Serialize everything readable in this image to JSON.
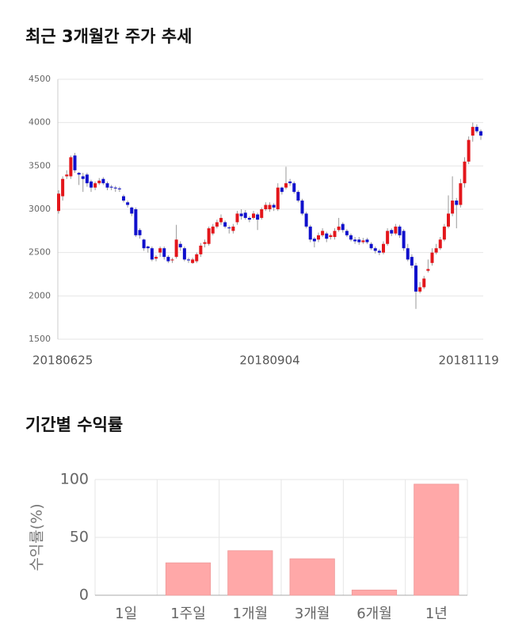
{
  "chart_data": [
    {
      "type": "candlestick",
      "title": "최근 3개월간 주가 추세",
      "categories": [
        null,
        "20180625",
        null,
        null,
        null,
        null,
        null,
        null,
        null,
        null,
        null,
        null,
        null,
        null,
        null,
        null,
        null,
        null,
        null,
        null,
        null,
        null,
        null,
        null,
        null,
        null,
        null,
        null,
        null,
        null,
        null,
        null,
        null,
        null,
        null,
        null,
        null,
        null,
        null,
        null,
        null,
        null,
        null,
        null,
        null,
        null,
        null,
        null,
        null,
        null,
        null,
        null,
        "20180904",
        null,
        null,
        null,
        null,
        null,
        null,
        null,
        null,
        null,
        null,
        null,
        null,
        null,
        null,
        null,
        null,
        null,
        null,
        null,
        null,
        null,
        null,
        null,
        null,
        null,
        null,
        null,
        null,
        null,
        null,
        null,
        null,
        null,
        null,
        null,
        null,
        null,
        null,
        null,
        null,
        null,
        null,
        null,
        null,
        null,
        null,
        null,
        null,
        "20181119",
        null,
        null,
        null
      ],
      "open": [
        2980,
        3150,
        3380,
        3380,
        3620,
        3420,
        3380,
        3400,
        3320,
        3250,
        3300,
        3350,
        3300,
        3260,
        3250,
        3240,
        3150,
        3080,
        3020,
        3000,
        2760,
        2650,
        2570,
        2550,
        2430,
        2500,
        2550,
        2450,
        2410,
        2450,
        2600,
        2550,
        2420,
        2380,
        2400,
        2480,
        2600,
        2600,
        2720,
        2800,
        2850,
        2850,
        2790,
        2750,
        2850,
        2950,
        2960,
        2900,
        2900,
        2940,
        2900,
        3000,
        3000,
        3050,
        3000,
        3250,
        3250,
        3320,
        3300,
        3200,
        3100,
        2950,
        2800,
        2660,
        2650,
        2700,
        2720,
        2680,
        2680,
        2760,
        2830,
        2750,
        2700,
        2650,
        2650,
        2620,
        2650,
        2600,
        2550,
        2520,
        2500,
        2600,
        2760,
        2720,
        2800,
        2750,
        2550,
        2450,
        2350,
        2050,
        2100,
        2290,
        2380,
        2500,
        2550,
        2650,
        2800,
        2950,
        3100,
        3050,
        3300,
        3550,
        3850,
        3950,
        3900
      ],
      "high": [
        3220,
        3380,
        3450,
        3620,
        3650,
        3430,
        3420,
        3420,
        3340,
        3320,
        3360,
        3370,
        3320,
        3280,
        3270,
        3260,
        3170,
        3100,
        3030,
        3020,
        2780,
        2660,
        2580,
        2570,
        2470,
        2570,
        2570,
        2470,
        2440,
        2820,
        2630,
        2570,
        2440,
        2440,
        2500,
        2610,
        2650,
        2800,
        2830,
        2880,
        2940,
        2870,
        2810,
        2830,
        2980,
        3000,
        2990,
        2920,
        2980,
        2960,
        3020,
        3080,
        3080,
        3070,
        3300,
        3260,
        3490,
        3350,
        3320,
        3220,
        3120,
        2970,
        2820,
        2680,
        2730,
        2780,
        2740,
        2720,
        2780,
        2900,
        2850,
        2770,
        2720,
        2680,
        2680,
        2670,
        2670,
        2620,
        2570,
        2540,
        2630,
        2780,
        2780,
        2830,
        2820,
        2770,
        2600,
        2480,
        2380,
        2160,
        2230,
        2420,
        2550,
        2600,
        2680,
        2830,
        3160,
        3380,
        3130,
        3350,
        3600,
        3840,
        4000,
        3980,
        3920
      ],
      "low": [
        2950,
        3100,
        3350,
        3350,
        3420,
        3280,
        3200,
        3260,
        3200,
        3220,
        3280,
        3280,
        3220,
        3220,
        3200,
        3200,
        3080,
        3020,
        2920,
        2680,
        2660,
        2520,
        2500,
        2400,
        2400,
        2450,
        2420,
        2380,
        2380,
        2430,
        2520,
        2400,
        2380,
        2370,
        2380,
        2450,
        2560,
        2580,
        2700,
        2780,
        2820,
        2780,
        2720,
        2720,
        2820,
        2880,
        2880,
        2850,
        2880,
        2760,
        2880,
        2980,
        2970,
        2980,
        2980,
        3170,
        3230,
        3270,
        3180,
        3080,
        2930,
        2780,
        2620,
        2560,
        2620,
        2680,
        2620,
        2650,
        2650,
        2740,
        2730,
        2680,
        2630,
        2600,
        2590,
        2600,
        2600,
        2530,
        2490,
        2470,
        2480,
        2580,
        2690,
        2700,
        2670,
        2520,
        2400,
        2320,
        1850,
        2030,
        2080,
        2270,
        2350,
        2480,
        2530,
        2630,
        2780,
        2920,
        2780,
        3020,
        3250,
        3520,
        3780,
        3880,
        3800
      ],
      "close": [
        3180,
        3350,
        3400,
        3600,
        3450,
        3400,
        3350,
        3300,
        3250,
        3300,
        3330,
        3300,
        3250,
        3250,
        3240,
        3230,
        3100,
        3050,
        2950,
        2700,
        2700,
        2550,
        2550,
        2420,
        2450,
        2550,
        2450,
        2400,
        2420,
        2650,
        2560,
        2420,
        2410,
        2420,
        2480,
        2580,
        2620,
        2780,
        2800,
        2850,
        2900,
        2800,
        2780,
        2800,
        2950,
        2920,
        2900,
        2880,
        2950,
        2880,
        3000,
        3050,
        3050,
        3020,
        3250,
        3200,
        3300,
        3300,
        3200,
        3100,
        2950,
        2800,
        2650,
        2630,
        2700,
        2750,
        2660,
        2700,
        2750,
        2800,
        2760,
        2700,
        2650,
        2630,
        2620,
        2640,
        2620,
        2550,
        2520,
        2500,
        2600,
        2750,
        2720,
        2800,
        2700,
        2550,
        2420,
        2350,
        2050,
        2100,
        2200,
        2310,
        2500,
        2550,
        2650,
        2800,
        2950,
        3100,
        3050,
        3300,
        3550,
        3800,
        3950,
        3900,
        3850
      ],
      "up_color": "#e3161b",
      "down_color": "#1010cc",
      "ylim": [
        1500,
        4500
      ],
      "yticks": [
        1500,
        2000,
        2500,
        3000,
        3500,
        4000,
        4500
      ],
      "grid": true
    },
    {
      "type": "bar",
      "title": "기간별 수익률",
      "ylabel": "수익률(%)",
      "categories": [
        "1일",
        "1주일",
        "1개월",
        "3개월",
        "6개월",
        "1년"
      ],
      "values": [
        0,
        28,
        38.5,
        31.5,
        4.5,
        96
      ],
      "color": "#ffa8a8",
      "ylim": [
        0,
        100
      ],
      "yticks": [
        0,
        50,
        100
      ],
      "grid": true
    }
  ]
}
